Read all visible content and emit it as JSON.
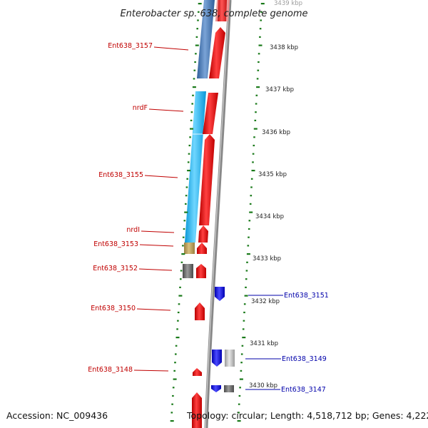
{
  "title": "Enterobacter sp. 638, complete genome",
  "footer": {
    "accession": "Accession: NC_009436",
    "topology": "Topology: circular; Length: 4,518,712 bp; Genes: 4,222"
  },
  "ticks": [
    {
      "label": "3439 kbp"
    },
    {
      "label": "3438 kbp"
    },
    {
      "label": "3437 kbp"
    },
    {
      "label": "3436 kbp"
    },
    {
      "label": "3435 kbp"
    },
    {
      "label": "3434 kbp"
    },
    {
      "label": "3433 kbp"
    },
    {
      "label": "3432 kbp"
    },
    {
      "label": "3431 kbp"
    },
    {
      "label": "3430 kbp"
    }
  ],
  "genes_left": [
    {
      "name": "Ent638_3157"
    },
    {
      "name": "nrdF"
    },
    {
      "name": "Ent638_3155"
    },
    {
      "name": "nrdI"
    },
    {
      "name": "Ent638_3153"
    },
    {
      "name": "Ent638_3152"
    },
    {
      "name": "Ent638_3150"
    },
    {
      "name": "Ent638_3148"
    }
  ],
  "genes_right": [
    {
      "name": "Ent638_3151"
    },
    {
      "name": "Ent638_3149"
    },
    {
      "name": "Ent638_3147"
    }
  ],
  "colors": {
    "cds_forward": "#ee0000",
    "cds_reverse": "#1010e0",
    "cog_steel": "#4a7bb7",
    "cog_cyan": "#22b8f0",
    "cog_tan": "#b8a060",
    "cog_gray": "#6a6a6a",
    "cog_light": "#bbbbbb",
    "backbone": "#888888",
    "tick_green": "#1a7a1a"
  }
}
